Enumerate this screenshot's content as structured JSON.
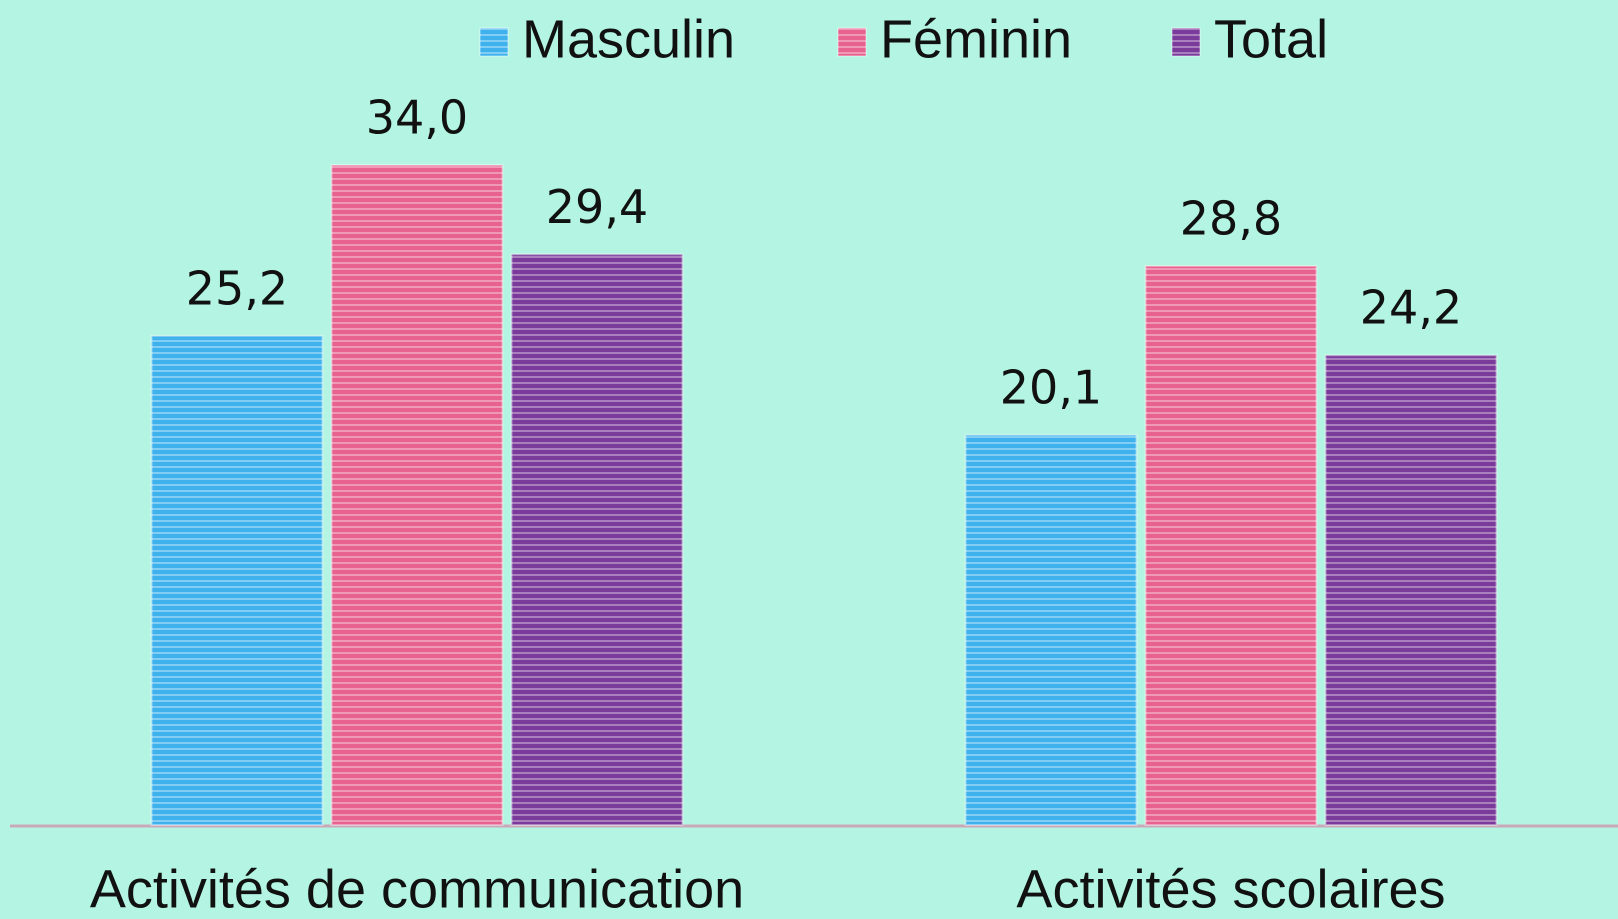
{
  "chart_data": {
    "type": "bar",
    "categories": [
      "Activités de communication",
      "Activités scolaires"
    ],
    "series": [
      {
        "name": "Masculin",
        "color": "#3fb2ee",
        "values": [
          25.2,
          20.1
        ],
        "value_labels": [
          "25,2",
          "20,1"
        ]
      },
      {
        "name": "Féminin",
        "color": "#e8628f",
        "values": [
          34.0,
          28.8
        ],
        "value_labels": [
          "34,0",
          "28,8"
        ]
      },
      {
        "name": "Total",
        "color": "#7b3b9b",
        "values": [
          29.4,
          24.2
        ],
        "value_labels": [
          "29,4",
          "24,2"
        ]
      }
    ],
    "ylim": [
      0,
      42.5
    ],
    "legend": "top"
  }
}
